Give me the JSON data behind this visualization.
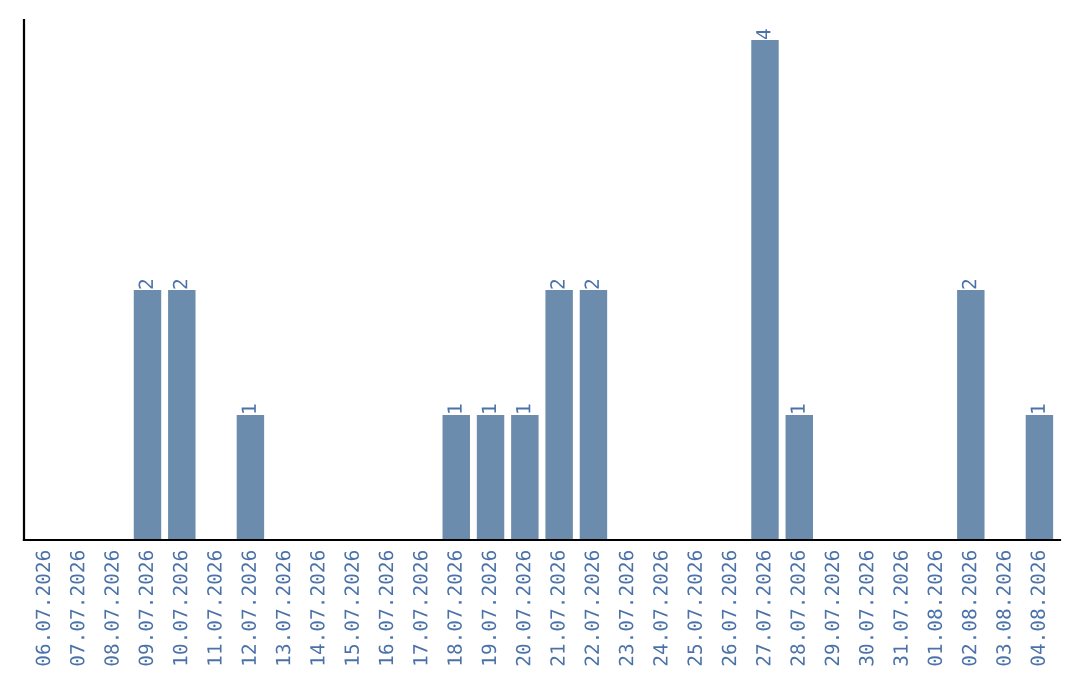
{
  "chart_data": {
    "type": "bar",
    "categories": [
      "06.07.2026",
      "07.07.2026",
      "08.07.2026",
      "09.07.2026",
      "10.07.2026",
      "11.07.2026",
      "12.07.2026",
      "13.07.2026",
      "14.07.2026",
      "15.07.2026",
      "16.07.2026",
      "17.07.2026",
      "18.07.2026",
      "19.07.2026",
      "20.07.2026",
      "21.07.2026",
      "22.07.2026",
      "23.07.2026",
      "24.07.2026",
      "25.07.2026",
      "26.07.2026",
      "27.07.2026",
      "28.07.2026",
      "29.07.2026",
      "30.07.2026",
      "31.07.2026",
      "01.08.2026",
      "02.08.2026",
      "03.08.2026",
      "04.08.2026"
    ],
    "values": [
      0,
      0,
      0,
      2,
      2,
      0,
      1,
      0,
      0,
      0,
      0,
      0,
      1,
      1,
      1,
      2,
      2,
      0,
      0,
      0,
      0,
      4,
      1,
      0,
      0,
      0,
      0,
      2,
      0,
      1
    ],
    "value_labels": [
      null,
      null,
      null,
      "2",
      "2",
      null,
      "1",
      null,
      null,
      null,
      null,
      null,
      "1",
      "1",
      "1",
      "2",
      "2",
      null,
      null,
      null,
      null,
      "4",
      "1",
      null,
      null,
      null,
      null,
      "2",
      null,
      "1"
    ],
    "color": "#6b8cad",
    "tick_labels": "x",
    "grid": false,
    "legend": false
  }
}
